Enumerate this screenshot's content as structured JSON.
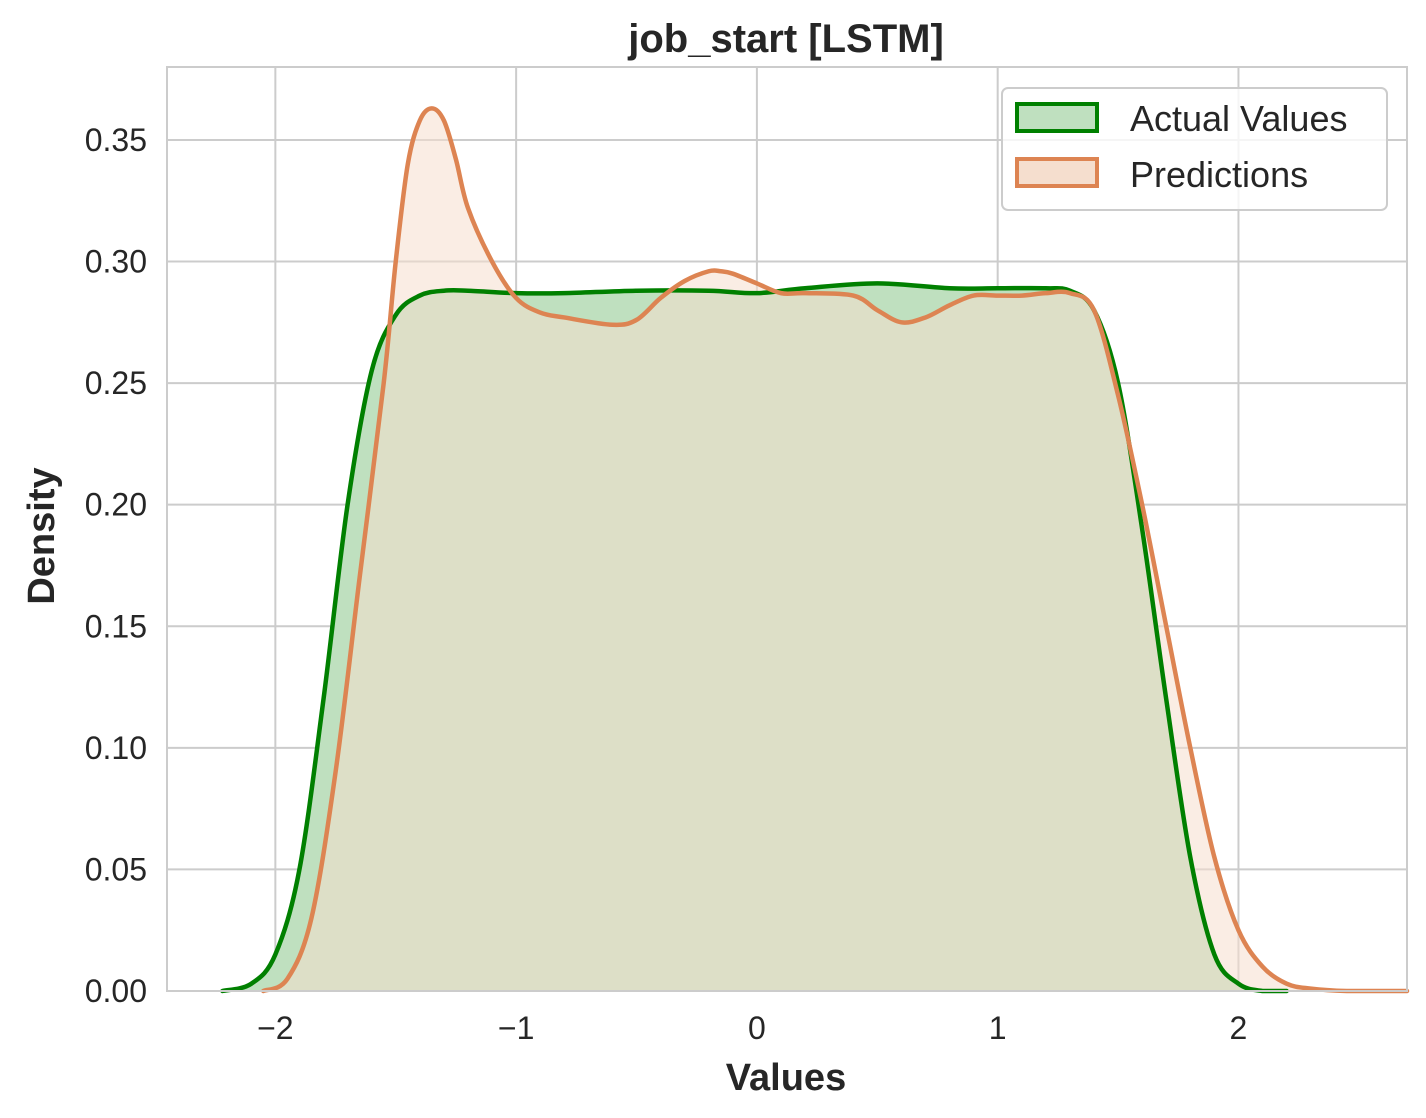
{
  "chart_data": {
    "type": "area",
    "title": "job_start [LSTM]",
    "xlabel": "Values",
    "ylabel": "Density",
    "xlim": [
      -2.45,
      2.7
    ],
    "ylim": [
      0,
      0.38
    ],
    "x_ticks": [
      -2,
      -1,
      0,
      1,
      2
    ],
    "x_tick_labels": [
      "−2",
      "−1",
      "0",
      "1",
      "2"
    ],
    "y_ticks": [
      0,
      0.05,
      0.1,
      0.15,
      0.2,
      0.25,
      0.3,
      0.35
    ],
    "y_tick_labels": [
      "0.00",
      "0.05",
      "0.10",
      "0.15",
      "0.20",
      "0.25",
      "0.30",
      "0.35"
    ],
    "grid": true,
    "legend_position": "top-right",
    "series": [
      {
        "name": "Actual Values",
        "color": "#008000",
        "fill": "#bfe0bf",
        "x": [
          -2.22,
          -2.1,
          -2.0,
          -1.9,
          -1.8,
          -1.7,
          -1.6,
          -1.5,
          -1.4,
          -1.3,
          -1.2,
          -1.0,
          -0.8,
          -0.5,
          -0.2,
          0.0,
          0.2,
          0.5,
          0.8,
          1.0,
          1.2,
          1.3,
          1.4,
          1.5,
          1.6,
          1.7,
          1.8,
          1.9,
          2.0,
          2.1,
          2.2
        ],
        "y": [
          0.0,
          0.003,
          0.015,
          0.05,
          0.12,
          0.2,
          0.255,
          0.278,
          0.286,
          0.288,
          0.288,
          0.287,
          0.287,
          0.288,
          0.288,
          0.287,
          0.289,
          0.291,
          0.289,
          0.289,
          0.289,
          0.288,
          0.28,
          0.25,
          0.19,
          0.12,
          0.055,
          0.015,
          0.003,
          0.0,
          0.0
        ]
      },
      {
        "name": "Predictions",
        "color": "#dd8452",
        "fill": "#f5dece",
        "x": [
          -2.05,
          -1.95,
          -1.85,
          -1.75,
          -1.65,
          -1.55,
          -1.5,
          -1.45,
          -1.4,
          -1.35,
          -1.3,
          -1.25,
          -1.2,
          -1.1,
          -1.0,
          -0.9,
          -0.8,
          -0.6,
          -0.5,
          -0.4,
          -0.3,
          -0.2,
          -0.15,
          -0.1,
          0.0,
          0.1,
          0.2,
          0.4,
          0.5,
          0.6,
          0.7,
          0.8,
          0.9,
          1.0,
          1.1,
          1.2,
          1.3,
          1.4,
          1.5,
          1.6,
          1.7,
          1.8,
          1.9,
          2.0,
          2.1,
          2.2,
          2.3,
          2.45,
          2.7
        ],
        "y": [
          0.0,
          0.005,
          0.03,
          0.09,
          0.17,
          0.25,
          0.3,
          0.34,
          0.358,
          0.363,
          0.358,
          0.342,
          0.322,
          0.3,
          0.285,
          0.279,
          0.277,
          0.274,
          0.276,
          0.285,
          0.292,
          0.296,
          0.296,
          0.295,
          0.291,
          0.287,
          0.287,
          0.286,
          0.28,
          0.275,
          0.277,
          0.282,
          0.286,
          0.286,
          0.286,
          0.287,
          0.287,
          0.28,
          0.245,
          0.2,
          0.15,
          0.1,
          0.055,
          0.025,
          0.01,
          0.003,
          0.001,
          0.0,
          0.0
        ]
      }
    ]
  }
}
